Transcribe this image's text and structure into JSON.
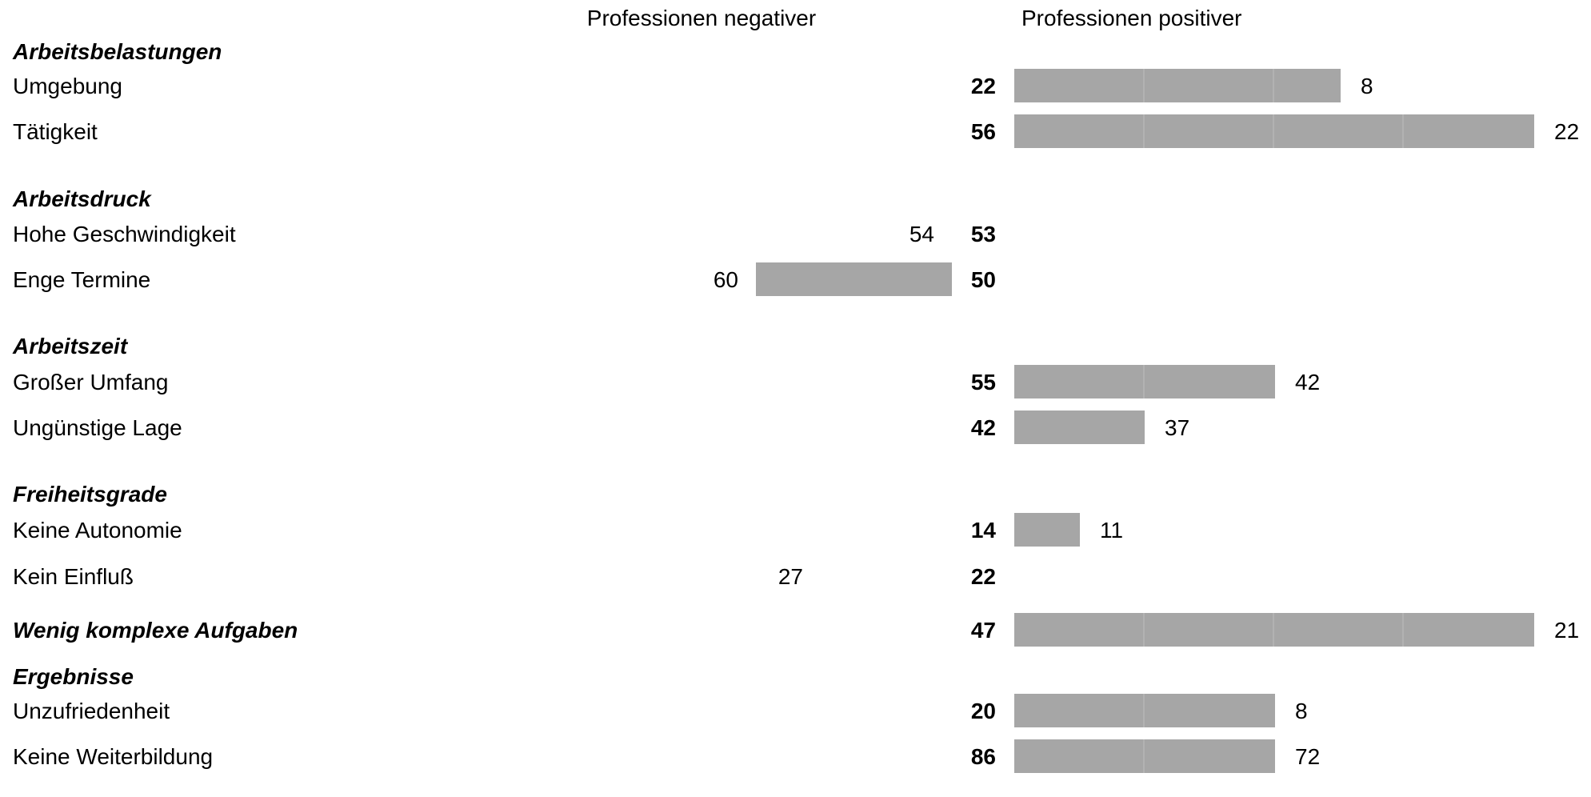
{
  "chart_data": {
    "type": "bar",
    "column_headers": {
      "negative": "Professionen negativer",
      "positive": "Professionen positiver"
    },
    "colors": {
      "bar": "#a6a6a6",
      "bar_line": "#bdbdbd"
    },
    "rows": [
      {
        "kind": "section",
        "label": "Arbeitsbelastungen"
      },
      {
        "kind": "item",
        "label": "Umgebung",
        "center": 22,
        "positive": 8
      },
      {
        "kind": "item",
        "label": "Tätigkeit",
        "center": 56,
        "positive": 22
      },
      {
        "kind": "section",
        "label": "Arbeitsdruck"
      },
      {
        "kind": "item",
        "label": "Hohe Geschwindigkeit",
        "center": 53,
        "negative": 54
      },
      {
        "kind": "item",
        "label": "Enge Termine",
        "center": 50,
        "negative": 60
      },
      {
        "kind": "section",
        "label": "Arbeitszeit"
      },
      {
        "kind": "item",
        "label": "Großer Umfang",
        "center": 55,
        "positive": 42
      },
      {
        "kind": "item",
        "label": "Ungünstige Lage",
        "center": 42,
        "positive": 37
      },
      {
        "kind": "section",
        "label": "Freiheitsgrade"
      },
      {
        "kind": "item",
        "label": "Keine Autonomie",
        "center": 14,
        "positive": 11
      },
      {
        "kind": "item",
        "label": "Kein Einfluß",
        "center": 22,
        "negative": 27
      },
      {
        "kind": "item",
        "section_style": true,
        "label": "Wenig komplexe Aufgaben",
        "center": 47,
        "positive": 21
      },
      {
        "kind": "section",
        "label": "Ergebnisse"
      },
      {
        "kind": "item",
        "label": "Unzufriedenheit",
        "center": 20,
        "positive": 8
      },
      {
        "kind": "item",
        "label": "Keine Weiterbildung",
        "center": 86,
        "positive": 72
      }
    ]
  }
}
